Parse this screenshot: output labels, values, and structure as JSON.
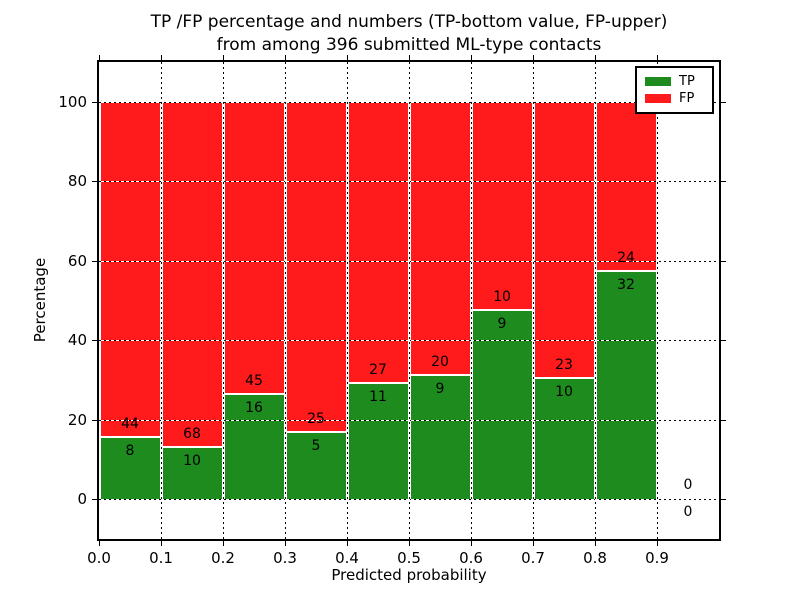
{
  "title": {
    "line1": "TP /FP percentage and numbers (TP-bottom value, FP-upper)",
    "line2": "from among 396 submitted ML-type contacts"
  },
  "chart_data": {
    "type": "bar",
    "stacked": true,
    "normalized_to_percent": 100,
    "title_lines": [
      "TP /FP percentage and numbers (TP-bottom value, FP-upper)",
      "from among 396 submitted ML-type contacts"
    ],
    "total_contacts": 396,
    "xlabel": "Predicted probability",
    "ylabel": "Percentage",
    "xlim": [
      0.0,
      1.0
    ],
    "ylim": [
      -10,
      110
    ],
    "xticks": [
      "0.0",
      "0.1",
      "0.2",
      "0.3",
      "0.4",
      "0.5",
      "0.6",
      "0.7",
      "0.8",
      "0.9"
    ],
    "yticks": [
      0,
      20,
      40,
      60,
      80,
      100
    ],
    "grid": true,
    "grid_style": "dotted",
    "bins": [
      {
        "range": [
          0.0,
          0.1
        ],
        "tp": 8,
        "fp": 44,
        "tp_pct": 15.4
      },
      {
        "range": [
          0.1,
          0.2
        ],
        "tp": 10,
        "fp": 68,
        "tp_pct": 12.8
      },
      {
        "range": [
          0.2,
          0.3
        ],
        "tp": 16,
        "fp": 45,
        "tp_pct": 26.2
      },
      {
        "range": [
          0.3,
          0.4
        ],
        "tp": 5,
        "fp": 25,
        "tp_pct": 16.7
      },
      {
        "range": [
          0.4,
          0.5
        ],
        "tp": 11,
        "fp": 27,
        "tp_pct": 28.9
      },
      {
        "range": [
          0.5,
          0.6
        ],
        "tp": 9,
        "fp": 20,
        "tp_pct": 31.0
      },
      {
        "range": [
          0.6,
          0.7
        ],
        "tp": 9,
        "fp": 10,
        "tp_pct": 47.4
      },
      {
        "range": [
          0.7,
          0.8
        ],
        "tp": 10,
        "fp": 23,
        "tp_pct": 30.3
      },
      {
        "range": [
          0.8,
          0.9
        ],
        "tp": 32,
        "fp": 24,
        "tp_pct": 57.1
      },
      {
        "range": [
          0.9,
          1.0
        ],
        "tp": 0,
        "fp": 0,
        "tp_pct": 0.0
      }
    ],
    "colors": {
      "tp": "#1e8b1e",
      "fp": "#ff1b1b"
    },
    "legend": {
      "position": "upper-right",
      "entries": [
        {
          "label": "TP",
          "series": "tp"
        },
        {
          "label": "FP",
          "series": "fp"
        }
      ]
    }
  }
}
